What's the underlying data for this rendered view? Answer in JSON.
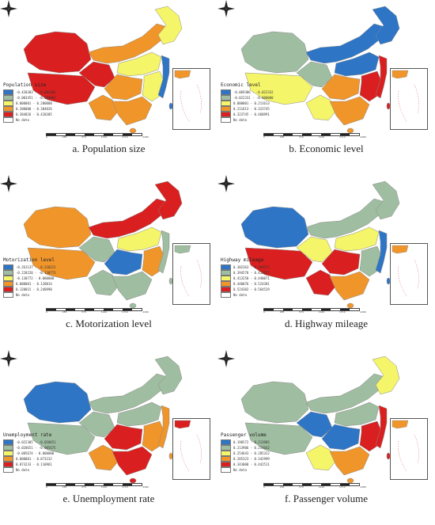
{
  "panels": [
    {
      "caption": "a. Population size",
      "legend_title": "Population size",
      "classes": [
        {
          "range": "-0.420303 - -0.003402",
          "color": "#2e75c6"
        },
        {
          "range": "-0.003451 - -0.000001",
          "color": "#9fbda0"
        },
        {
          "range": "0.000001 - 0.200000",
          "color": "#f5f56a"
        },
        {
          "range": "0.200000 - 0.384826",
          "color": "#f0952a"
        },
        {
          "range": "0.384826 - 0.420305",
          "color": "#d91f1f"
        }
      ],
      "regions": {
        "northwest": "#d91f1f",
        "tibet": "#d91f1f",
        "qinghai": "#d91f1f",
        "inner_mongolia": "#f0952a",
        "northeast": "#f5f56a",
        "north": "#f5f56a",
        "central": "#f0952a",
        "southwest": "#f0952a",
        "south": "#f0952a",
        "east": "#f5f56a",
        "coast": "#2e75c6"
      }
    },
    {
      "caption": "b. Economic level",
      "legend_title": "Economic level",
      "classes": [
        {
          "range": "-0.069306 - -0.022332",
          "color": "#2e75c6"
        },
        {
          "range": "-0.022331 - -0.000000",
          "color": "#9fbda0"
        },
        {
          "range": "0.000001 - 0.211613",
          "color": "#f5f56a"
        },
        {
          "range": "0.211613 - 0.323745",
          "color": "#f0952a"
        },
        {
          "range": "0.323745 - 0.460991",
          "color": "#d91f1f"
        }
      ],
      "regions": {
        "northwest": "#9fbda0",
        "tibet": "#f5f56a",
        "qinghai": "#9fbda0",
        "inner_mongolia": "#2e75c6",
        "northeast": "#2e75c6",
        "north": "#2e75c6",
        "central": "#f0952a",
        "southwest": "#f5f56a",
        "south": "#f0952a",
        "east": "#d91f1f",
        "coast": "#d91f1f"
      }
    },
    {
      "caption": "c. Motorization level",
      "legend_title": "Motorization level",
      "classes": [
        {
          "range": "-0.261137 - -0.220221",
          "color": "#2e75c6"
        },
        {
          "range": "-0.220220 - -0.130773",
          "color": "#9fbda0"
        },
        {
          "range": "-0.130772 - 0.000000",
          "color": "#f5f56a"
        },
        {
          "range": "0.000001 - 0.120014",
          "color": "#f0952a"
        },
        {
          "range": "0.120015 - 0.240990",
          "color": "#d91f1f"
        }
      ],
      "regions": {
        "northwest": "#f0952a",
        "tibet": "#f0952a",
        "qinghai": "#9fbda0",
        "inner_mongolia": "#d91f1f",
        "northeast": "#d91f1f",
        "north": "#f5f56a",
        "central": "#2e75c6",
        "southwest": "#9fbda0",
        "south": "#9fbda0",
        "east": "#f0952a",
        "coast": "#9fbda0"
      }
    },
    {
      "caption": "d. Highway mileage",
      "legend_title": "Highway mileage",
      "classes": [
        {
          "range": "0.382363 - 0.394571",
          "color": "#2e75c6"
        },
        {
          "range": "0.394578 - 0.413257",
          "color": "#9fbda0"
        },
        {
          "range": "0.413258 - 0.440071",
          "color": "#f5f56a"
        },
        {
          "range": "0.440076 - 0.524381",
          "color": "#f0952a"
        },
        {
          "range": "0.524382 - 0.564529",
          "color": "#d91f1f"
        }
      ],
      "regions": {
        "northwest": "#2e75c6",
        "tibet": "#d91f1f",
        "qinghai": "#f5f56a",
        "inner_mongolia": "#9fbda0",
        "northeast": "#9fbda0",
        "north": "#f5f56a",
        "central": "#d91f1f",
        "southwest": "#d91f1f",
        "south": "#f0952a",
        "east": "#9fbda0",
        "coast": "#2e75c6"
      }
    },
    {
      "caption": "e. Unemployment rate",
      "legend_title": "Unemployment rate",
      "classes": [
        {
          "range": "-0.022305 - -0.020651",
          "color": "#2e75c6"
        },
        {
          "range": "-0.020651 - -0.005675",
          "color": "#9fbda0"
        },
        {
          "range": "-0.005674 - 0.000000",
          "color": "#f5f56a"
        },
        {
          "range": "0.000001 - 0.073232",
          "color": "#f0952a"
        },
        {
          "range": "0.073233 - 0.110961",
          "color": "#d91f1f"
        }
      ],
      "regions": {
        "northwest": "#2e75c6",
        "tibet": "#9fbda0",
        "qinghai": "#9fbda0",
        "inner_mongolia": "#9fbda0",
        "northeast": "#9fbda0",
        "north": "#9fbda0",
        "central": "#d91f1f",
        "southwest": "#f0952a",
        "south": "#d91f1f",
        "east": "#f0952a",
        "coast": "#f0952a"
      }
    },
    {
      "caption": "f. Passenger volume",
      "legend_title": "Passenger volume",
      "classes": [
        {
          "range": "0.190572 - 0.213905",
          "color": "#2e75c6"
        },
        {
          "range": "0.213906 - 0.254642",
          "color": "#9fbda0"
        },
        {
          "range": "0.254643 - 0.285322",
          "color": "#f5f56a"
        },
        {
          "range": "0.285323 - 0.342999",
          "color": "#f0952a"
        },
        {
          "range": "0.343000 - 0.442511",
          "color": "#d91f1f"
        }
      ],
      "regions": {
        "northwest": "#9fbda0",
        "tibet": "#9fbda0",
        "qinghai": "#2e75c6",
        "inner_mongolia": "#9fbda0",
        "northeast": "#f5f56a",
        "north": "#9fbda0",
        "central": "#2e75c6",
        "southwest": "#f5f56a",
        "south": "#f0952a",
        "east": "#d91f1f",
        "coast": "#d91f1f"
      }
    }
  ],
  "no_data_label": "No data",
  "no_data_color": "#ffffff",
  "scale_labels": [
    "0",
    "285",
    "570",
    "1140",
    "1710",
    "2280"
  ],
  "compass_icon": "north-arrow-icon"
}
